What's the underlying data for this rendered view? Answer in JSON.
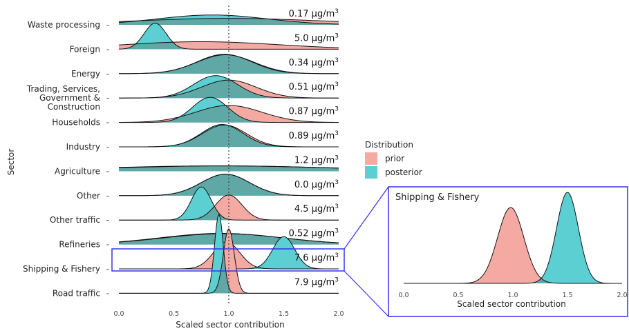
{
  "chart_data": [
    {
      "type": "ridgeline-density",
      "xlabel": "Scaled sector contribution",
      "ylabel": "Sector",
      "xlim": [
        0,
        2
      ],
      "x_ticks": [
        "0.0",
        "0.5",
        "1.0",
        "1.5",
        "2.0"
      ],
      "reference_line_x": 1.0,
      "unit": "µg/m",
      "unit_superscript": "3",
      "legend": {
        "title": "Distribution",
        "entries": [
          {
            "name": "prior",
            "color": "#F4A9A3"
          },
          {
            "name": "posterior",
            "color": "#5CCFD2"
          }
        ]
      },
      "overlap_color": "#5FA8A6",
      "sectors": [
        {
          "name": "Waste processing",
          "value": "0.17",
          "prior": {
            "mean": 1.0,
            "sd": 0.85,
            "peak": 0.36
          },
          "posterior": {
            "mean": 0.85,
            "sd": 0.5,
            "peak": 0.55
          }
        },
        {
          "name": "Foreign",
          "value": "5.0",
          "prior": {
            "mean": 0.75,
            "sd": 0.7,
            "peak": 0.42
          },
          "posterior": {
            "mean": 0.33,
            "sd": 0.1,
            "peak": 1.45
          }
        },
        {
          "name": "Energy",
          "value": "0.34",
          "prior": {
            "mean": 0.97,
            "sd": 0.26,
            "peak": 1.05
          },
          "posterior": {
            "mean": 0.96,
            "sd": 0.25,
            "peak": 1.08
          }
        },
        {
          "name": "Trading, Services,\nGovernment &\nConstruction",
          "value": "0.51",
          "prior": {
            "mean": 1.0,
            "sd": 0.25,
            "peak": 1.0
          },
          "posterior": {
            "mean": 0.88,
            "sd": 0.2,
            "peak": 1.25
          }
        },
        {
          "name": "Households",
          "value": "0.87",
          "prior": {
            "mean": 1.0,
            "sd": 0.3,
            "peak": 0.95
          },
          "posterior": {
            "mean": 0.83,
            "sd": 0.16,
            "peak": 1.4
          }
        },
        {
          "name": "Industry",
          "value": "0.89",
          "prior": {
            "mean": 0.96,
            "sd": 0.2,
            "peak": 1.22
          },
          "posterior": {
            "mean": 0.94,
            "sd": 0.19,
            "peak": 1.25
          }
        },
        {
          "name": "Agriculture",
          "value": "1.2",
          "prior": {
            "mean": 0.9,
            "sd": 1.1,
            "peak": 0.3
          },
          "posterior": {
            "mean": 0.95,
            "sd": 1.0,
            "peak": 0.3
          }
        },
        {
          "name": "Other",
          "value": "0.0",
          "prior": {
            "mean": 0.97,
            "sd": 0.22,
            "peak": 1.2
          },
          "posterior": {
            "mean": 0.97,
            "sd": 0.22,
            "peak": 1.2
          }
        },
        {
          "name": "Other traffic",
          "value": "4.5",
          "prior": {
            "mean": 1.0,
            "sd": 0.12,
            "peak": 1.4
          },
          "posterior": {
            "mean": 0.75,
            "sd": 0.09,
            "peak": 1.85
          }
        },
        {
          "name": "Refineries",
          "value": "0.52",
          "prior": {
            "mean": 0.95,
            "sd": 0.55,
            "peak": 0.6
          },
          "posterior": {
            "mean": 0.93,
            "sd": 0.55,
            "peak": 0.62
          }
        },
        {
          "name": "Shipping & Fishery",
          "value": "7.6",
          "prior": {
            "mean": 0.98,
            "sd": 0.12,
            "peak": 1.5
          },
          "posterior": {
            "mean": 1.5,
            "sd": 0.1,
            "peak": 1.8
          }
        },
        {
          "name": "Road traffic",
          "value": "7.9",
          "prior": {
            "mean": 1.0,
            "sd": 0.05,
            "peak": 3.6
          },
          "posterior": {
            "mean": 0.91,
            "sd": 0.04,
            "peak": 4.4
          }
        }
      ]
    },
    {
      "type": "density",
      "title": "Shipping & Fishery",
      "xlabel": "Scaled sector contribution",
      "xlim": [
        0,
        2
      ],
      "x_ticks": [
        "0.0",
        "0.5",
        "1.0",
        "1.5",
        "2.0"
      ],
      "prior": {
        "mean": 0.98,
        "sd": 0.12
      },
      "posterior": {
        "mean": 1.5,
        "sd": 0.1
      }
    }
  ]
}
